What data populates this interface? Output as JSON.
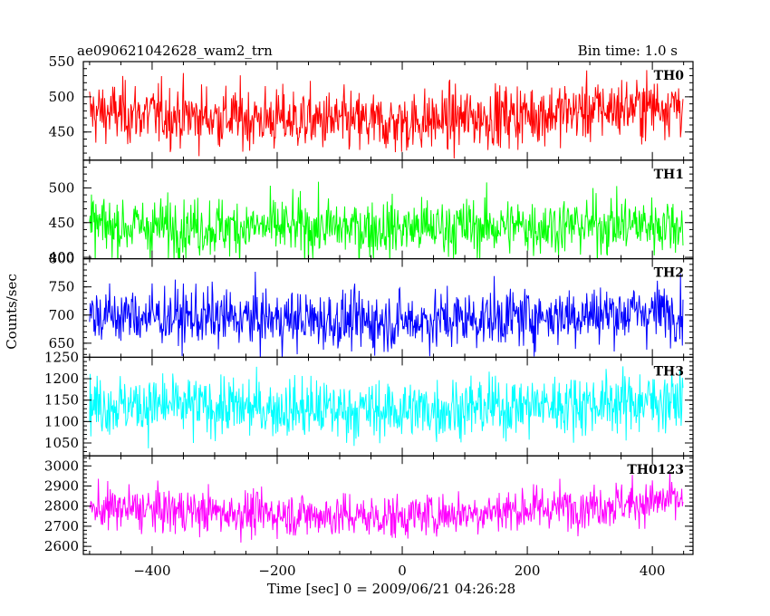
{
  "header": {
    "title": "ae090621042628_wam2_trn",
    "bin_time": "Bin time: 1.0 s"
  },
  "chart_data": {
    "type": "line",
    "title": "ae090621042628_wam2_trn",
    "subtitle": "Bin time: 1.0 s",
    "xlabel": "Time [sec] 0 = 2009/06/21 04:26:28",
    "ylabel": "Counts/sec",
    "xlim": [
      -510,
      465
    ],
    "x_start": -500,
    "x_end": 449,
    "x_step": 1,
    "x_ticks": [
      -400,
      -200,
      0,
      200,
      400
    ],
    "x_tick_labels": [
      "−400",
      "−200",
      "0",
      "200",
      "400"
    ],
    "panels": [
      {
        "name": "TH0",
        "color": "#ff0000",
        "ylim": [
          410,
          550
        ],
        "y_ticks": [
          450,
          500,
          550
        ],
        "y_tick_labels": [
          "450",
          "500",
          "550"
        ],
        "mean_start": 478,
        "mean_mid": 462,
        "mean_end": 490,
        "std_dev": 22
      },
      {
        "name": "TH1",
        "color": "#00ff00",
        "ylim": [
          398,
          540
        ],
        "y_ticks": [
          400,
          450,
          500
        ],
        "y_tick_labels": [
          "400",
          "450",
          "500"
        ],
        "mean_start": 445,
        "mean_mid": 442,
        "mean_end": 448,
        "std_dev": 21
      },
      {
        "name": "TH2",
        "color": "#0000ff",
        "ylim": [
          625,
          800
        ],
        "y_ticks": [
          650,
          700,
          750,
          800
        ],
        "y_tick_labels": [
          "650",
          "700",
          "750",
          "800"
        ],
        "mean_start": 700,
        "mean_mid": 688,
        "mean_end": 708,
        "std_dev": 26
      },
      {
        "name": "TH3",
        "color": "#00ffff",
        "ylim": [
          1020,
          1250
        ],
        "y_ticks": [
          1050,
          1100,
          1150,
          1200,
          1250
        ],
        "y_tick_labels": [
          "1050",
          "1100",
          "1150",
          "1200",
          "1250"
        ],
        "mean_start": 1140,
        "mean_mid": 1125,
        "mean_end": 1150,
        "std_dev": 35
      },
      {
        "name": "TH0123",
        "color": "#ff00ff",
        "ylim": [
          2560,
          3050
        ],
        "y_ticks": [
          2600,
          2700,
          2800,
          2900,
          3000
        ],
        "y_tick_labels": [
          "2600",
          "2700",
          "2800",
          "2900",
          "3000"
        ],
        "mean_start": 2790,
        "mean_mid": 2745,
        "mean_end": 2830,
        "std_dev": 55
      }
    ]
  }
}
